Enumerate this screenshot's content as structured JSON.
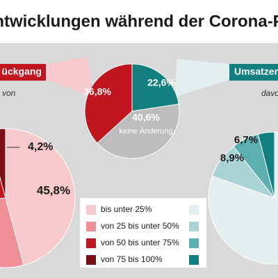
{
  "title": "entwicklungen während der Corona-Pa",
  "left_box": "ückgang",
  "left_sub": "von",
  "right_box": "Umsatzen",
  "right_sub": "davo",
  "legend": [
    "bis unter 25%",
    "von 25 bis unter 50%",
    "von 50 bis unter 75%",
    "von 75 bis 100%"
  ],
  "chart_data": [
    {
      "type": "pie",
      "categories": [
        null,
        null,
        "keine Änderung"
      ],
      "values": [
        22.6,
        40.6,
        36.8
      ],
      "value_labels": [
        "22,6%",
        "40,6%",
        "36,8%"
      ],
      "colors": [
        "#13807f",
        "#bdbdbd",
        "#c0161f"
      ]
    },
    {
      "type": "pie",
      "values": [
        45.8,
        28.0,
        22.0,
        4.2
      ],
      "value_labels": [
        "45,8%",
        null,
        null,
        "4,2%"
      ],
      "colors": [
        "#f6c9cc",
        "#ee8f95",
        "#c0161f",
        "#7a1015"
      ]
    },
    {
      "type": "pie",
      "values": [
        80.4,
        8.9,
        6.7,
        4.0
      ],
      "value_labels": [
        null,
        "8,9%",
        "6,7%",
        null
      ],
      "colors": [
        "#e3efef",
        "#aad3d6",
        "#5cb0b0",
        "#127f80"
      ]
    }
  ]
}
